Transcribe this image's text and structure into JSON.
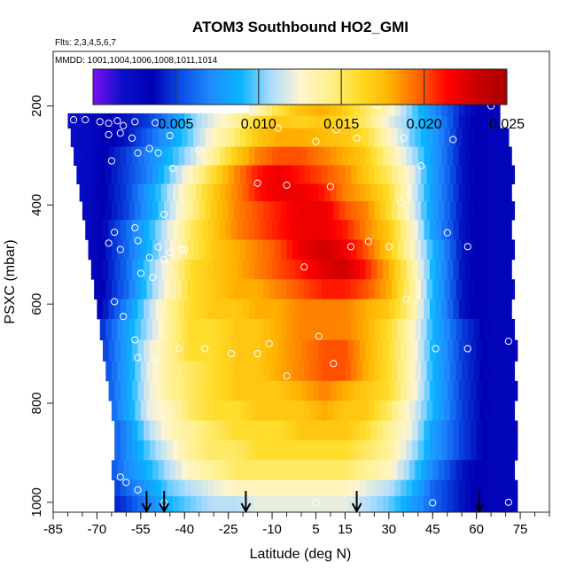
{
  "chart_data": {
    "type": "heatmap",
    "title": "ATOM3 Southbound HO2_GMI",
    "subtitle_flights": "Flts: 2,3,4,5,6,7",
    "subtitle_dates": "MMDD: 1001,1004,1006,1008,1011,1014",
    "xlabel": "Latitude (deg N)",
    "ylabel": "PSXC (mbar)",
    "xlim": [
      -85,
      85
    ],
    "ylim": [
      1020,
      90
    ],
    "y_reversed": true,
    "x_ticks": [
      -85,
      -70,
      -55,
      -40,
      -25,
      -10,
      5,
      15,
      30,
      45,
      60,
      75
    ],
    "x_tick_labels": [
      "-85",
      "-70",
      "-55",
      "-40",
      "-25",
      "-10",
      "5",
      "15",
      "30",
      "45",
      "60",
      "75"
    ],
    "y_ticks": [
      200,
      400,
      600,
      800,
      1000
    ],
    "y_tick_labels": [
      "200",
      "400",
      "600",
      "800",
      "1000"
    ],
    "colorbar": {
      "min": 0.0,
      "max": 0.025,
      "ticks": [
        0.005,
        0.01,
        0.015,
        0.02,
        0.025
      ],
      "tick_labels": [
        "0.005",
        "0.010",
        "0.015",
        "0.020",
        "0.025"
      ],
      "colors": [
        "#7d0ff0",
        "#0a10c8",
        "#0000b4",
        "#0b4fe6",
        "#1f8cff",
        "#0ab4ff",
        "#aadcff",
        "#fff5d2",
        "#fff08c",
        "#ffdc28",
        "#ffb400",
        "#ff6400",
        "#ff0000",
        "#c80000",
        "#aa0000"
      ]
    },
    "profile_flight_latitudes": [
      -53,
      -47,
      -19,
      19,
      61
    ],
    "pressure_levels": [
      225,
      265,
      300,
      340,
      375,
      410,
      450,
      490,
      530,
      570,
      610,
      650,
      695,
      735,
      775,
      815,
      855,
      895,
      935,
      975,
      1000
    ],
    "level_lat_start": [
      -80,
      -79,
      -78,
      -77,
      -76,
      -75,
      -74,
      -73,
      -72,
      -71,
      -70,
      -69,
      -68,
      -67,
      -66,
      -65,
      -64,
      -64,
      -65,
      -64,
      -64
    ],
    "level_lat_end": [
      68,
      71,
      71,
      72,
      72,
      72,
      72,
      72,
      72,
      72,
      72,
      73,
      73,
      73,
      73,
      73,
      73,
      73,
      73,
      73,
      73
    ],
    "upper_strip": {
      "pressure_top": 175,
      "pressure_bottom": 220,
      "lat_start": -18,
      "lat_end": 68
    },
    "lat_nodes": [
      -80,
      -70,
      -60,
      -52,
      -45,
      -38,
      -30,
      -22,
      -15,
      -8,
      0,
      8,
      15,
      22,
      30,
      38,
      45,
      55,
      65,
      73
    ],
    "values": [
      [
        0.002,
        0.003,
        0.004,
        0.005,
        0.007,
        0.01,
        0.012,
        0.014,
        0.016,
        0.017,
        0.0165,
        0.017,
        0.016,
        0.015,
        0.012,
        0.01,
        0.008,
        0.004,
        0.003,
        0.003
      ],
      [
        0.002,
        0.003,
        0.004,
        0.006,
        0.008,
        0.01,
        0.013,
        0.015,
        0.017,
        0.018,
        0.018,
        0.0175,
        0.017,
        0.016,
        0.013,
        0.01,
        0.008,
        0.004,
        0.003,
        0.003
      ],
      [
        0.002,
        0.003,
        0.005,
        0.007,
        0.009,
        0.011,
        0.014,
        0.017,
        0.019,
        0.02,
        0.02,
        0.019,
        0.018,
        0.017,
        0.014,
        0.011,
        0.008,
        0.004,
        0.003,
        0.003
      ],
      [
        0.002,
        0.003,
        0.005,
        0.007,
        0.01,
        0.013,
        0.016,
        0.019,
        0.021,
        0.022,
        0.021,
        0.02,
        0.019,
        0.017,
        0.015,
        0.012,
        0.008,
        0.004,
        0.003,
        0.003
      ],
      [
        0.002,
        0.003,
        0.005,
        0.008,
        0.011,
        0.014,
        0.017,
        0.019,
        0.021,
        0.022,
        0.022,
        0.021,
        0.019,
        0.018,
        0.016,
        0.012,
        0.008,
        0.004,
        0.003,
        0.003
      ],
      [
        0.002,
        0.003,
        0.005,
        0.008,
        0.011,
        0.014,
        0.017,
        0.019,
        0.02,
        0.021,
        0.022,
        0.022,
        0.02,
        0.019,
        0.016,
        0.012,
        0.008,
        0.004,
        0.003,
        0.003
      ],
      [
        0.002,
        0.003,
        0.006,
        0.009,
        0.012,
        0.015,
        0.017,
        0.019,
        0.02,
        0.021,
        0.022,
        0.022,
        0.021,
        0.019,
        0.017,
        0.013,
        0.008,
        0.004,
        0.003,
        0.003
      ],
      [
        0.002,
        0.003,
        0.006,
        0.009,
        0.012,
        0.015,
        0.017,
        0.018,
        0.019,
        0.02,
        0.022,
        0.023,
        0.022,
        0.02,
        0.017,
        0.013,
        0.009,
        0.004,
        0.003,
        0.003
      ],
      [
        0.002,
        0.003,
        0.006,
        0.01,
        0.013,
        0.016,
        0.017,
        0.018,
        0.019,
        0.02,
        0.021,
        0.0225,
        0.023,
        0.021,
        0.018,
        0.014,
        0.009,
        0.004,
        0.003,
        0.003
      ],
      [
        0.002,
        0.003,
        0.006,
        0.01,
        0.013,
        0.016,
        0.017,
        0.018,
        0.018,
        0.019,
        0.02,
        0.021,
        0.021,
        0.02,
        0.018,
        0.014,
        0.009,
        0.004,
        0.003,
        0.003
      ],
      [
        0.002,
        0.003,
        0.007,
        0.011,
        0.014,
        0.016,
        0.017,
        0.017,
        0.018,
        0.018,
        0.019,
        0.019,
        0.019,
        0.018,
        0.017,
        0.014,
        0.009,
        0.004,
        0.003,
        0.003
      ],
      [
        0.002,
        0.004,
        0.008,
        0.011,
        0.014,
        0.016,
        0.016,
        0.017,
        0.017,
        0.018,
        0.019,
        0.019,
        0.019,
        0.018,
        0.016,
        0.013,
        0.009,
        0.005,
        0.003,
        0.003
      ],
      [
        0.002,
        0.004,
        0.008,
        0.012,
        0.014,
        0.016,
        0.016,
        0.017,
        0.017,
        0.018,
        0.019,
        0.02,
        0.02,
        0.018,
        0.016,
        0.013,
        0.009,
        0.005,
        0.003,
        0.003
      ],
      [
        0.002,
        0.004,
        0.008,
        0.012,
        0.014,
        0.015,
        0.016,
        0.017,
        0.017,
        0.018,
        0.019,
        0.02,
        0.02,
        0.018,
        0.016,
        0.013,
        0.009,
        0.005,
        0.003,
        0.003
      ],
      [
        0.002,
        0.004,
        0.008,
        0.012,
        0.014,
        0.015,
        0.016,
        0.017,
        0.017,
        0.017,
        0.018,
        0.019,
        0.018,
        0.017,
        0.016,
        0.013,
        0.009,
        0.005,
        0.003,
        0.003
      ],
      [
        0.002,
        0.004,
        0.008,
        0.012,
        0.013,
        0.015,
        0.016,
        0.016,
        0.017,
        0.017,
        0.017,
        0.018,
        0.017,
        0.017,
        0.015,
        0.012,
        0.009,
        0.005,
        0.003,
        0.003
      ],
      [
        0.002,
        0.004,
        0.007,
        0.011,
        0.013,
        0.014,
        0.015,
        0.016,
        0.016,
        0.016,
        0.017,
        0.017,
        0.017,
        0.016,
        0.014,
        0.012,
        0.008,
        0.005,
        0.003,
        0.003
      ],
      [
        0.002,
        0.004,
        0.007,
        0.01,
        0.012,
        0.014,
        0.015,
        0.015,
        0.016,
        0.016,
        0.016,
        0.016,
        0.016,
        0.015,
        0.014,
        0.011,
        0.008,
        0.005,
        0.003,
        0.003
      ],
      [
        0.002,
        0.004,
        0.007,
        0.009,
        0.011,
        0.013,
        0.014,
        0.015,
        0.015,
        0.015,
        0.015,
        0.015,
        0.015,
        0.014,
        0.013,
        0.01,
        0.007,
        0.004,
        0.003,
        0.003
      ],
      [
        0.002,
        0.003,
        0.006,
        0.008,
        0.01,
        0.011,
        0.012,
        0.013,
        0.013,
        0.013,
        0.013,
        0.013,
        0.013,
        0.012,
        0.011,
        0.009,
        0.006,
        0.004,
        0.003,
        0.003
      ],
      [
        0.002,
        0.003,
        0.005,
        0.007,
        0.009,
        0.01,
        0.011,
        0.011,
        0.012,
        0.012,
        0.012,
        0.012,
        0.012,
        0.011,
        0.01,
        0.008,
        0.006,
        0.004,
        0.003,
        0.003
      ]
    ],
    "upper_strip_values": [
      0.012,
      0.015,
      0.017,
      0.018,
      0.017,
      0.015,
      0.013,
      0.01,
      0.007,
      0.004,
      0.003
    ],
    "upper_strip_lat_nodes": [
      -18,
      -10,
      -2,
      6,
      14,
      22,
      30,
      38,
      46,
      56,
      68
    ],
    "observations": [
      {
        "lat": -78,
        "p": 228
      },
      {
        "lat": -74,
        "p": 228
      },
      {
        "lat": -69,
        "p": 232
      },
      {
        "lat": -66,
        "p": 235
      },
      {
        "lat": -63,
        "p": 230
      },
      {
        "lat": -61,
        "p": 240
      },
      {
        "lat": -57,
        "p": 232
      },
      {
        "lat": -50,
        "p": 234
      },
      {
        "lat": -66,
        "p": 258
      },
      {
        "lat": -62,
        "p": 255
      },
      {
        "lat": -45,
        "p": 260
      },
      {
        "lat": -58,
        "p": 265
      },
      {
        "lat": -52,
        "p": 286
      },
      {
        "lat": -35,
        "p": 289
      },
      {
        "lat": -8,
        "p": 245
      },
      {
        "lat": -23,
        "p": 199
      },
      {
        "lat": 5,
        "p": 272
      },
      {
        "lat": 12,
        "p": 248
      },
      {
        "lat": 19,
        "p": 265
      },
      {
        "lat": 26,
        "p": 198
      },
      {
        "lat": 35,
        "p": 265
      },
      {
        "lat": 52,
        "p": 268
      },
      {
        "lat": 65,
        "p": 200
      },
      {
        "lat": -49,
        "p": 295
      },
      {
        "lat": -65,
        "p": 311
      },
      {
        "lat": -56,
        "p": 295
      },
      {
        "lat": -44,
        "p": 326
      },
      {
        "lat": -15,
        "p": 356
      },
      {
        "lat": -5,
        "p": 360
      },
      {
        "lat": 10,
        "p": 363
      },
      {
        "lat": 34,
        "p": 395
      },
      {
        "lat": 41,
        "p": 321
      },
      {
        "lat": -47,
        "p": 419
      },
      {
        "lat": -57,
        "p": 446
      },
      {
        "lat": -64,
        "p": 455
      },
      {
        "lat": -62,
        "p": 490
      },
      {
        "lat": -56,
        "p": 472
      },
      {
        "lat": -49,
        "p": 485
      },
      {
        "lat": -40,
        "p": 490
      },
      {
        "lat": -45,
        "p": 496
      },
      {
        "lat": -66,
        "p": 477
      },
      {
        "lat": -52,
        "p": 506
      },
      {
        "lat": -55,
        "p": 538
      },
      {
        "lat": -51,
        "p": 546
      },
      {
        "lat": -47,
        "p": 510
      },
      {
        "lat": -41,
        "p": 490
      },
      {
        "lat": 1,
        "p": 525
      },
      {
        "lat": 17,
        "p": 484
      },
      {
        "lat": 23,
        "p": 474
      },
      {
        "lat": 30,
        "p": 484
      },
      {
        "lat": 50,
        "p": 456
      },
      {
        "lat": 57,
        "p": 484
      },
      {
        "lat": -64,
        "p": 595
      },
      {
        "lat": -61,
        "p": 625
      },
      {
        "lat": 36,
        "p": 590
      },
      {
        "lat": -57,
        "p": 672
      },
      {
        "lat": -42,
        "p": 690
      },
      {
        "lat": -33,
        "p": 690
      },
      {
        "lat": -24,
        "p": 700
      },
      {
        "lat": -15,
        "p": 700
      },
      {
        "lat": -11,
        "p": 680
      },
      {
        "lat": -5,
        "p": 745
      },
      {
        "lat": 6,
        "p": 665
      },
      {
        "lat": 11,
        "p": 720
      },
      {
        "lat": 46,
        "p": 690
      },
      {
        "lat": 57,
        "p": 690
      },
      {
        "lat": 71,
        "p": 675
      },
      {
        "lat": -50,
        "p": 712
      },
      {
        "lat": -56,
        "p": 708
      },
      {
        "lat": -62,
        "p": 949
      },
      {
        "lat": -60,
        "p": 960
      },
      {
        "lat": -56,
        "p": 975
      },
      {
        "lat": -47,
        "p": 1001
      },
      {
        "lat": 5,
        "p": 1001
      },
      {
        "lat": 45,
        "p": 1001
      },
      {
        "lat": 71,
        "p": 1000
      },
      {
        "lat": -68,
        "p": 945
      },
      {
        "lat": -66,
        "p": 960
      }
    ]
  }
}
